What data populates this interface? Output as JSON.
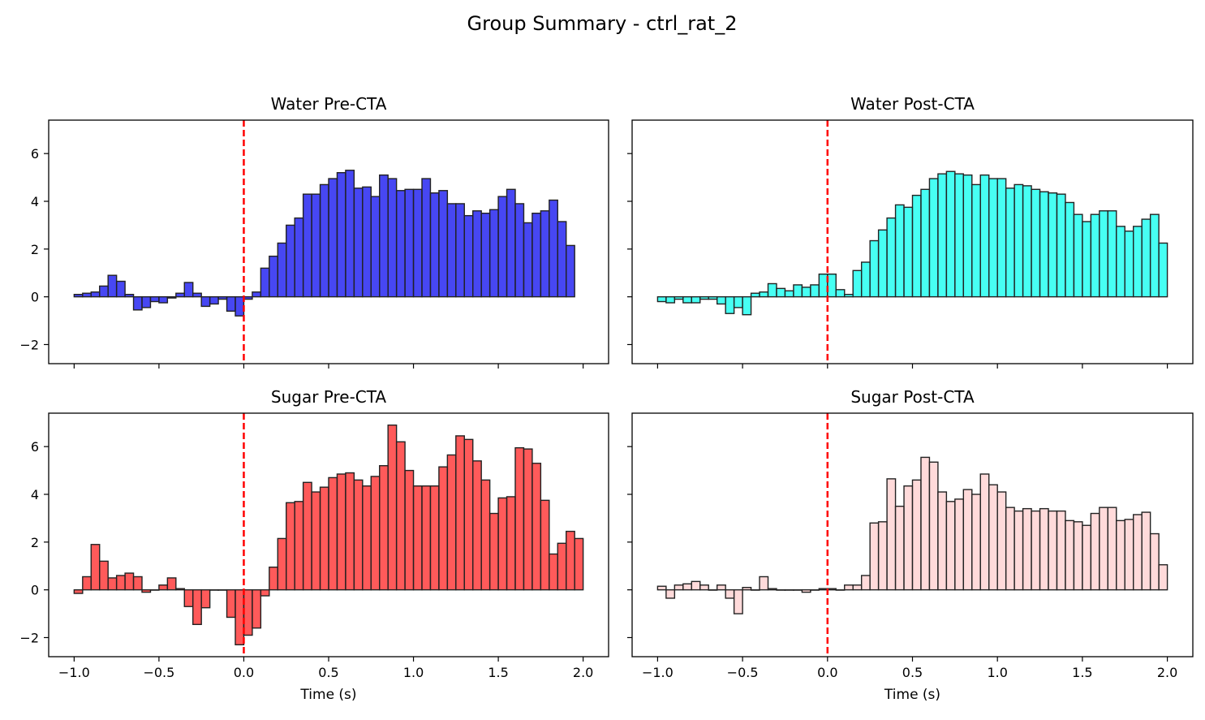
{
  "figure": {
    "title": "Group Summary - ctrl_rat_2"
  },
  "axes": {
    "xlim": [
      -1.15,
      2.15
    ],
    "ylim": [
      -2.8,
      7.4
    ],
    "xticks": [
      -1.0,
      -0.5,
      0.0,
      0.5,
      1.0,
      1.5,
      2.0
    ],
    "xtick_labels": [
      "−1.0",
      "−0.5",
      "0.0",
      "0.5",
      "1.0",
      "1.5",
      "2.0"
    ],
    "yticks": [
      -2,
      0,
      2,
      4,
      6
    ],
    "ytick_labels": [
      "−2",
      "0",
      "2",
      "4",
      "6"
    ],
    "xlabel": "Time (s)",
    "vline_x": 0.0,
    "vline_color": "#ff0000"
  },
  "chart_data": [
    {
      "type": "bar",
      "title": "Water Pre-CTA",
      "color": "#0000ee",
      "bin_start": -1.0,
      "bin_width": 0.05,
      "xlabel": "",
      "values": [
        0.1,
        0.15,
        0.2,
        0.45,
        0.9,
        0.65,
        0.1,
        -0.55,
        -0.45,
        -0.2,
        -0.25,
        -0.05,
        0.15,
        0.6,
        0.15,
        -0.4,
        -0.3,
        -0.1,
        -0.6,
        -0.8,
        -0.1,
        0.2,
        1.2,
        1.7,
        2.25,
        3.0,
        3.3,
        4.3,
        4.3,
        4.7,
        4.95,
        5.2,
        5.3,
        4.55,
        4.6,
        4.2,
        5.1,
        4.95,
        4.45,
        4.5,
        4.5,
        4.95,
        4.35,
        4.45,
        3.9,
        3.9,
        3.4,
        3.6,
        3.5,
        3.65,
        4.2,
        4.5,
        3.9,
        3.1,
        3.5,
        3.6,
        4.05,
        3.15,
        2.15
      ]
    },
    {
      "type": "bar",
      "title": "Water Post-CTA",
      "color": "#00ffee",
      "bin_start": -1.0,
      "bin_width": 0.05,
      "xlabel": "",
      "values": [
        -0.2,
        -0.25,
        -0.1,
        -0.25,
        -0.25,
        -0.1,
        -0.1,
        -0.3,
        -0.7,
        -0.45,
        -0.75,
        0.15,
        0.2,
        0.55,
        0.35,
        0.25,
        0.5,
        0.4,
        0.5,
        0.95,
        0.95,
        0.3,
        0.1,
        1.1,
        1.45,
        2.35,
        2.8,
        3.3,
        3.85,
        3.75,
        4.25,
        4.5,
        4.95,
        5.15,
        5.25,
        5.15,
        5.1,
        4.7,
        5.1,
        4.95,
        4.95,
        4.55,
        4.7,
        4.65,
        4.5,
        4.4,
        4.35,
        4.3,
        3.95,
        3.45,
        3.15,
        3.45,
        3.6,
        3.6,
        2.95,
        2.75,
        2.95,
        3.25,
        3.45,
        2.25
      ]
    },
    {
      "type": "bar",
      "title": "Sugar Pre-CTA",
      "color": "#ff1a1a",
      "bin_start": -1.0,
      "bin_width": 0.05,
      "xlabel": "Time (s)",
      "values": [
        -0.15,
        0.55,
        1.9,
        1.2,
        0.5,
        0.6,
        0.7,
        0.55,
        -0.1,
        0.0,
        0.2,
        0.5,
        0.05,
        -0.7,
        -1.45,
        -0.75,
        0.0,
        0.0,
        -1.15,
        -2.3,
        -1.9,
        -1.6,
        -0.25,
        0.95,
        2.15,
        3.65,
        3.7,
        4.5,
        4.1,
        4.3,
        4.7,
        4.85,
        4.9,
        4.6,
        4.35,
        4.75,
        5.2,
        6.9,
        6.2,
        5.0,
        4.35,
        4.35,
        4.35,
        5.15,
        5.65,
        6.45,
        6.3,
        5.4,
        4.6,
        3.2,
        3.85,
        3.9,
        5.95,
        5.9,
        5.3,
        3.75,
        1.5,
        1.95,
        2.45,
        2.15
      ]
    },
    {
      "type": "bar",
      "title": "Sugar Post-CTA",
      "color": "#ffcccc",
      "bin_start": -1.0,
      "bin_width": 0.05,
      "xlabel": "Time (s)",
      "values": [
        0.15,
        -0.35,
        0.2,
        0.25,
        0.35,
        0.2,
        0.0,
        0.2,
        -0.35,
        -1.0,
        0.1,
        0.0,
        0.55,
        0.05,
        0.0,
        0.0,
        0.0,
        -0.1,
        0.0,
        0.05,
        0.05,
        0.0,
        0.2,
        0.2,
        0.6,
        2.8,
        2.85,
        4.65,
        3.5,
        4.35,
        4.6,
        5.55,
        5.35,
        4.1,
        3.7,
        3.8,
        4.2,
        4.0,
        4.85,
        4.4,
        4.1,
        3.45,
        3.3,
        3.4,
        3.3,
        3.4,
        3.3,
        3.3,
        2.9,
        2.85,
        2.7,
        3.2,
        3.45,
        3.45,
        2.9,
        2.95,
        3.15,
        3.25,
        2.35,
        1.05
      ]
    }
  ]
}
